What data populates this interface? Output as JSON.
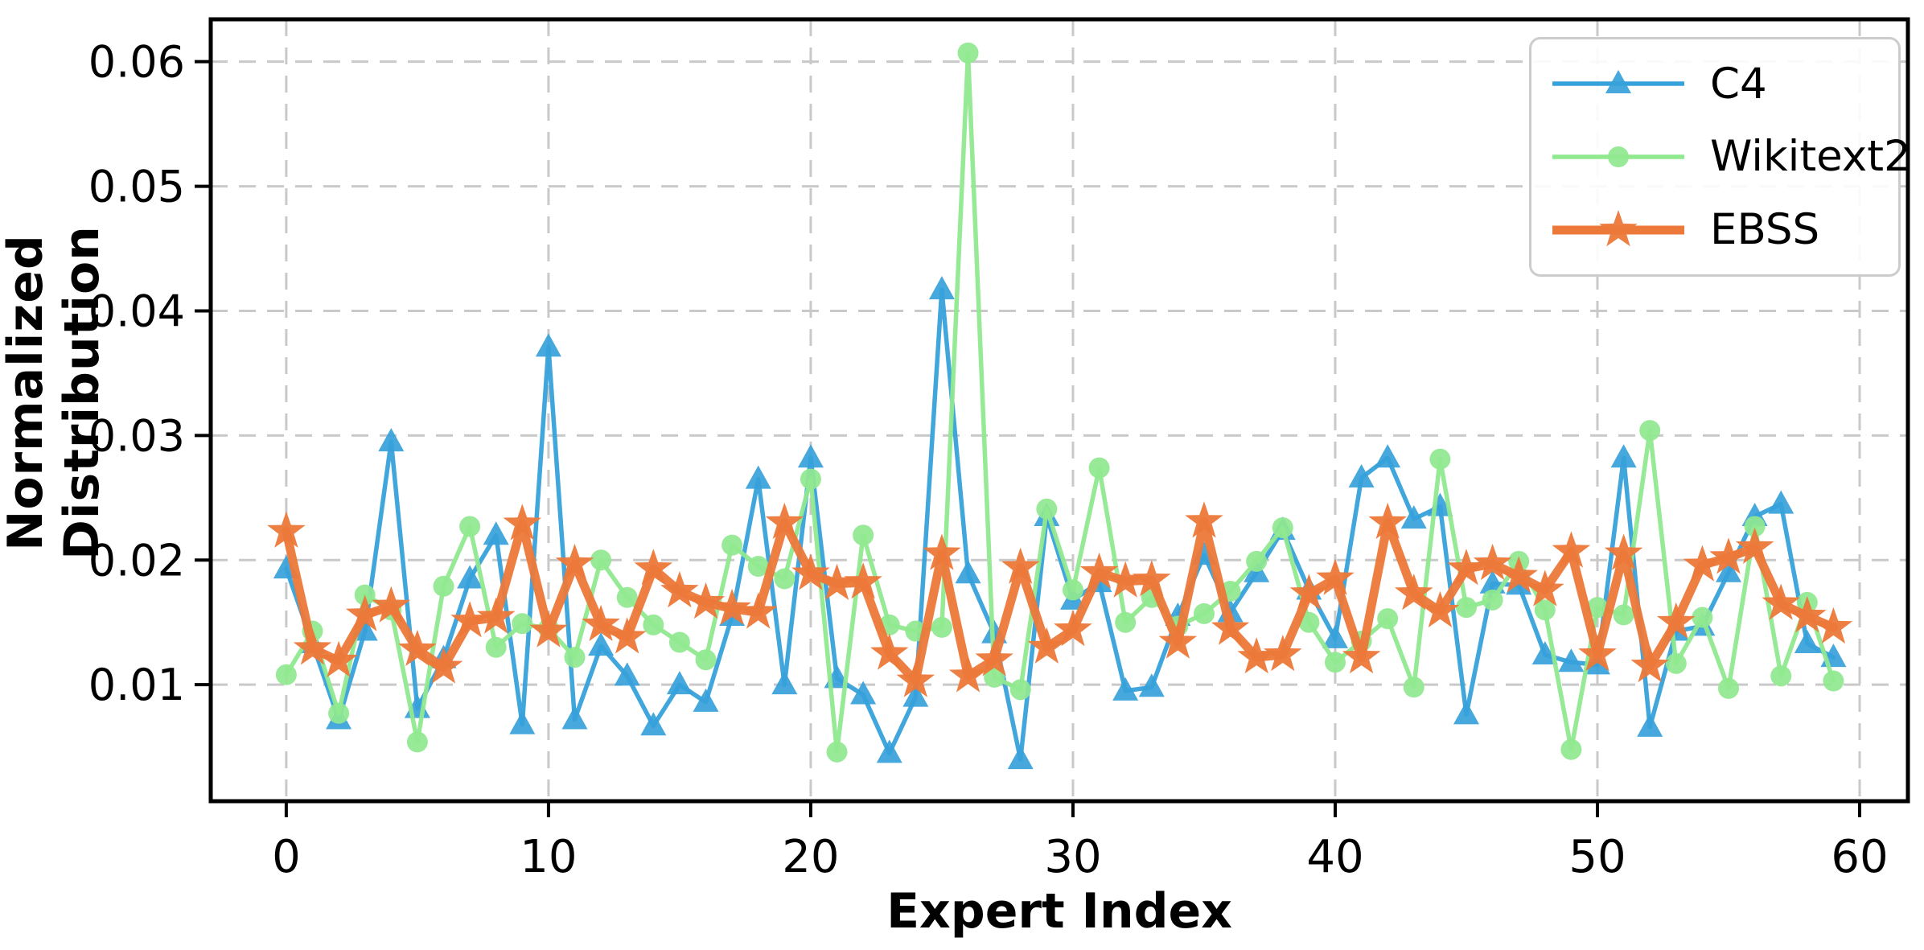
{
  "chart_data": {
    "type": "line",
    "title": "",
    "xlabel": "Expert Index",
    "ylabel": "Normalized Distribution",
    "grid": true,
    "grid_color": "#c9c9c9",
    "background": "#ffffff",
    "legend": {
      "position": "upper right"
    },
    "xlim": [
      -2.88,
      61.84
    ],
    "ylim": [
      0.00065,
      0.0634
    ],
    "x_ticks": [
      0,
      10,
      20,
      30,
      40,
      50,
      60
    ],
    "x_tick_labels": [
      "0",
      "10",
      "20",
      "30",
      "40",
      "50",
      "60"
    ],
    "y_ticks": [
      0.01,
      0.02,
      0.03,
      0.04,
      0.05,
      0.06
    ],
    "y_tick_labels": [
      "0.01",
      "0.02",
      "0.03",
      "0.04",
      "0.05",
      "0.06"
    ],
    "x": [
      0,
      1,
      2,
      3,
      4,
      5,
      6,
      7,
      8,
      9,
      10,
      11,
      12,
      13,
      14,
      15,
      16,
      17,
      18,
      19,
      20,
      21,
      22,
      23,
      24,
      25,
      26,
      27,
      28,
      29,
      30,
      31,
      32,
      33,
      34,
      35,
      36,
      37,
      38,
      39,
      40,
      41,
      42,
      43,
      44,
      45,
      46,
      47,
      48,
      49,
      50,
      51,
      52,
      53,
      54,
      55,
      56,
      57,
      58,
      59
    ],
    "series": [
      {
        "name": "C4",
        "color": "#36a1da",
        "marker": "triangle",
        "line_width": 5.5,
        "values": [
          0.0193,
          0.0133,
          0.0072,
          0.0143,
          0.0295,
          0.0081,
          0.0121,
          0.0185,
          0.022,
          0.0068,
          0.0371,
          0.0072,
          0.0131,
          0.0107,
          0.0067,
          0.01,
          0.0086,
          0.0155,
          0.0265,
          0.01,
          0.0282,
          0.0105,
          0.0092,
          0.0045,
          0.009,
          0.0417,
          0.0189,
          0.0141,
          0.004,
          0.0235,
          0.0168,
          0.0182,
          0.0095,
          0.0098,
          0.0155,
          0.0204,
          0.0158,
          0.019,
          0.0224,
          0.0176,
          0.0137,
          0.0266,
          0.0282,
          0.0233,
          0.0243,
          0.0076,
          0.0181,
          0.018,
          0.0124,
          0.0118,
          0.0116,
          0.0282,
          0.0066,
          0.0143,
          0.0147,
          0.019,
          0.0235,
          0.0245,
          0.0133,
          0.0122
        ]
      },
      {
        "name": "Wikitext2",
        "color": "#90e88f",
        "marker": "circle",
        "line_width": 5.5,
        "values": [
          0.0108,
          0.0143,
          0.0077,
          0.0172,
          0.016,
          0.0054,
          0.0179,
          0.0227,
          0.013,
          0.0149,
          0.0145,
          0.0122,
          0.02,
          0.017,
          0.0148,
          0.0134,
          0.012,
          0.0212,
          0.0195,
          0.0185,
          0.0265,
          0.0046,
          0.022,
          0.0148,
          0.0143,
          0.0146,
          0.0607,
          0.0106,
          0.0096,
          0.0241,
          0.0176,
          0.0274,
          0.015,
          0.017,
          0.0147,
          0.0157,
          0.0175,
          0.0199,
          0.0226,
          0.015,
          0.0118,
          0.0135,
          0.0153,
          0.0098,
          0.0281,
          0.0162,
          0.0168,
          0.0199,
          0.016,
          0.0048,
          0.0162,
          0.0156,
          0.0304,
          0.0117,
          0.0154,
          0.0097,
          0.0227,
          0.0107,
          0.0166,
          0.0103
        ]
      },
      {
        "name": "EBSS",
        "color": "#ec7839",
        "marker": "star",
        "line_width": 11,
        "values": [
          0.0223,
          0.0129,
          0.0119,
          0.0156,
          0.0163,
          0.0128,
          0.0114,
          0.0151,
          0.0154,
          0.0229,
          0.0143,
          0.0197,
          0.0148,
          0.0138,
          0.0193,
          0.0175,
          0.0166,
          0.0161,
          0.0158,
          0.023,
          0.0189,
          0.0181,
          0.0182,
          0.0125,
          0.0103,
          0.0205,
          0.0107,
          0.012,
          0.0194,
          0.013,
          0.0144,
          0.019,
          0.0183,
          0.0184,
          0.0134,
          0.0231,
          0.0145,
          0.0122,
          0.0124,
          0.0173,
          0.0185,
          0.0122,
          0.023,
          0.0173,
          0.0159,
          0.0193,
          0.0197,
          0.0187,
          0.0176,
          0.0207,
          0.0124,
          0.0205,
          0.0115,
          0.015,
          0.0196,
          0.0202,
          0.021,
          0.0165,
          0.0155,
          0.0146
        ]
      }
    ]
  }
}
